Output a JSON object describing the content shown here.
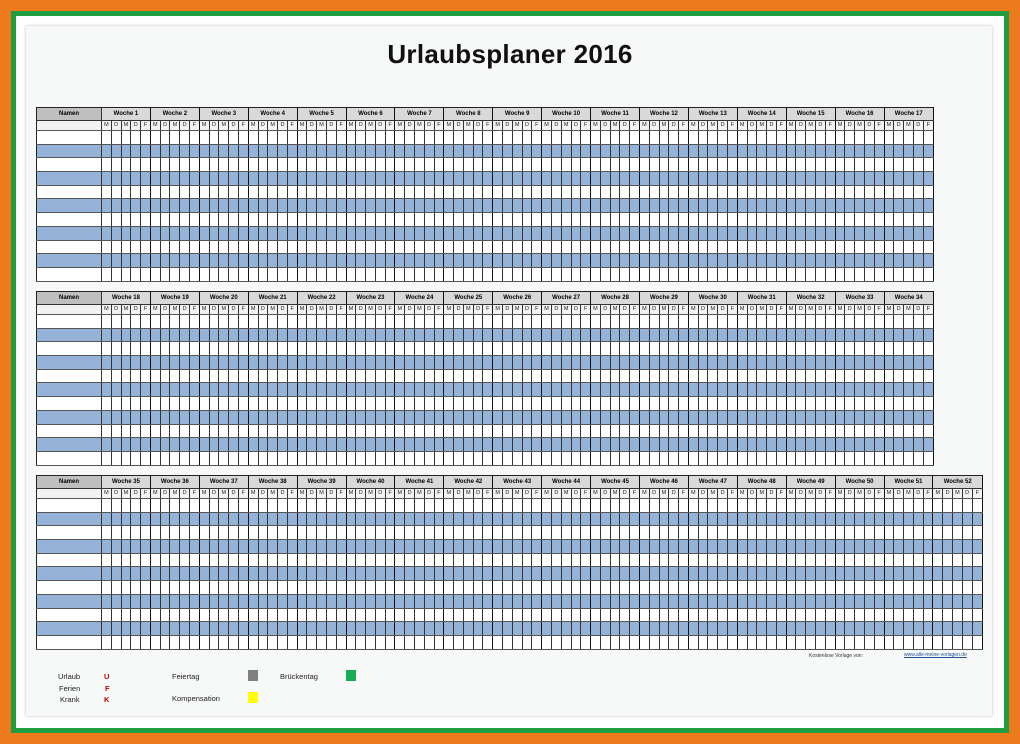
{
  "title": "Urlaubsplaner 2016",
  "names_header": "Namen",
  "week_prefix": "Woche",
  "day_letters": [
    "M",
    "D",
    "M",
    "D",
    "F"
  ],
  "blocks": [
    {
      "weeks": [
        1,
        2,
        3,
        4,
        5,
        6,
        7,
        8,
        9,
        10,
        11,
        12,
        13,
        14,
        15,
        16,
        17
      ],
      "rows": 11
    },
    {
      "weeks": [
        18,
        19,
        20,
        21,
        22,
        23,
        24,
        25,
        26,
        27,
        28,
        29,
        30,
        31,
        32,
        33,
        34
      ],
      "rows": 11
    },
    {
      "weeks": [
        35,
        36,
        37,
        38,
        39,
        40,
        41,
        42,
        43,
        44,
        45,
        46,
        47,
        48,
        49,
        50,
        51,
        52
      ],
      "rows": 11
    }
  ],
  "footer": {
    "note": "Kostenlose Vorlage von:",
    "link": "www.alle-meine-vorlagen.de"
  },
  "legend": {
    "urlaub": {
      "label": "Urlaub",
      "code": "U"
    },
    "ferien": {
      "label": "Ferien",
      "code": "F"
    },
    "krank": {
      "label": "Krank",
      "code": "K"
    },
    "feiertag": {
      "label": "Feiertag",
      "color": "#808080"
    },
    "brueckentag": {
      "label": "Brückentag",
      "color": "#1aab56"
    },
    "kompensation": {
      "label": "Kompensation",
      "color": "#ffff00"
    }
  },
  "colors": {
    "outer_border": "#ed7a1c",
    "inner_border": "#1f9e3f",
    "row_stripe": "#95b3d7",
    "header_fill": "#d9d9d9"
  }
}
